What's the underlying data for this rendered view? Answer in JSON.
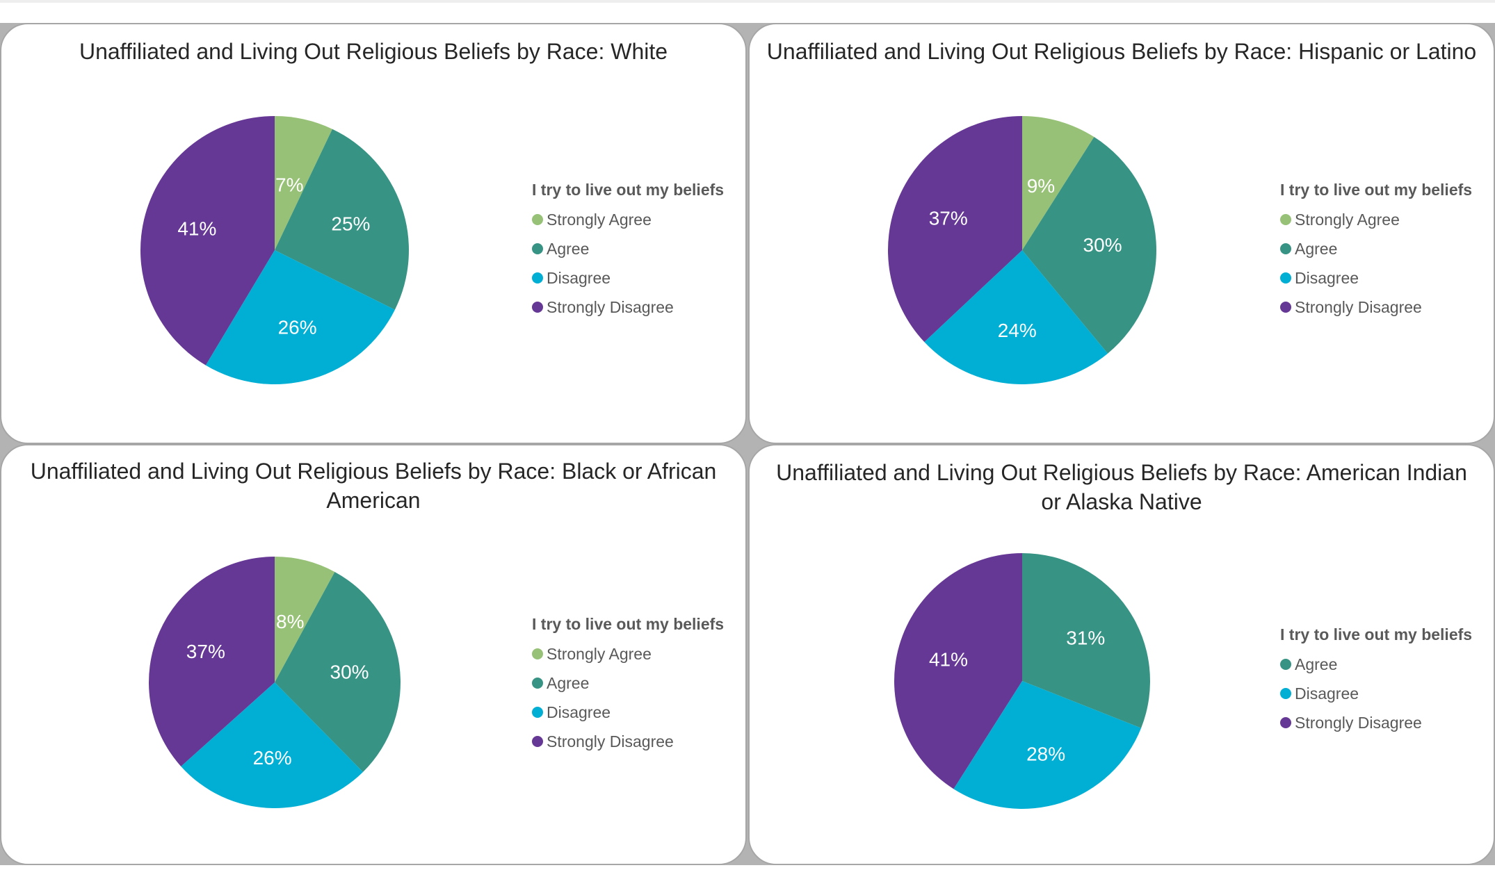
{
  "legend_title": "I try to live out my beliefs",
  "colors": {
    "Strongly Agree": "#97c177",
    "Agree": "#379384",
    "Disagree": "#00afd3",
    "Strongly Disagree": "#663895"
  },
  "chart_data": [
    {
      "type": "pie",
      "title": "Unaffiliated and Living Out Religious Beliefs by Race: White",
      "categories": [
        "Strongly Agree",
        "Agree",
        "Disagree",
        "Strongly Disagree"
      ],
      "values": [
        7,
        25,
        26,
        41
      ],
      "labels": [
        "7%",
        "25%",
        "26%",
        "41%"
      ],
      "legend": "right"
    },
    {
      "type": "pie",
      "title": "Unaffiliated and Living Out Religious Beliefs by Race: Hispanic or Latino",
      "categories": [
        "Strongly Agree",
        "Agree",
        "Disagree",
        "Strongly Disagree"
      ],
      "values": [
        9,
        30,
        24,
        37
      ],
      "labels": [
        "9%",
        "30%",
        "24%",
        "37%"
      ],
      "legend": "right"
    },
    {
      "type": "pie",
      "title": "Unaffiliated and Living Out Religious Beliefs by Race: Black or African American",
      "categories": [
        "Strongly Agree",
        "Agree",
        "Disagree",
        "Strongly Disagree"
      ],
      "values": [
        8,
        30,
        26,
        37
      ],
      "labels": [
        "8%",
        "30%",
        "26%",
        "37%"
      ],
      "legend": "right"
    },
    {
      "type": "pie",
      "title": "Unaffiliated and Living Out Religious Beliefs by Race: American Indian or Alaska Native",
      "categories": [
        "Agree",
        "Disagree",
        "Strongly Disagree"
      ],
      "values": [
        31,
        28,
        41
      ],
      "labels": [
        "31%",
        "28%",
        "41%"
      ],
      "legend": "right"
    }
  ]
}
